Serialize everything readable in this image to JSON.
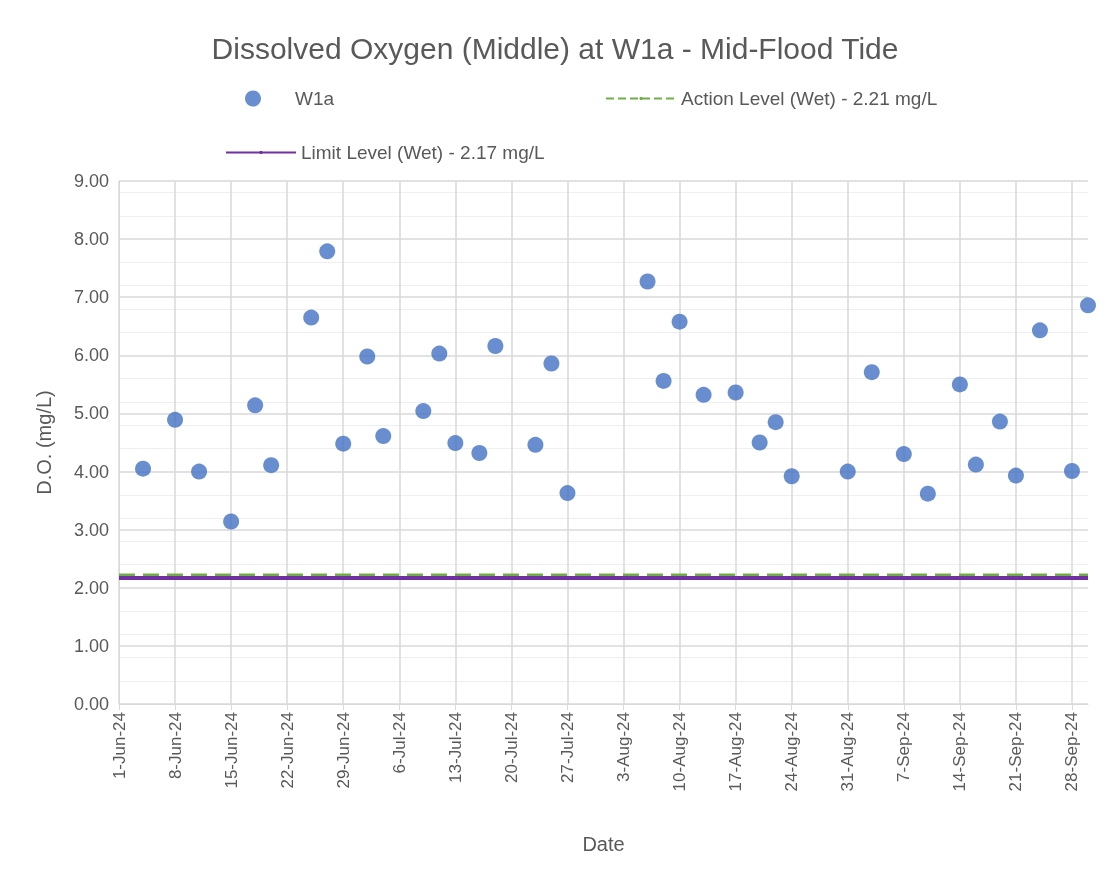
{
  "chart_data": {
    "type": "scatter",
    "title": "Dissolved Oxygen (Middle) at W1a - Mid-Flood Tide",
    "xlabel": "Date",
    "ylabel": "D.O. (mg/L)",
    "series": [
      {
        "name": "W1a",
        "color": "#4472c4",
        "x": [
          "--06-04",
          "--06-08",
          "--06-11",
          "--06-15",
          "--06-18",
          "--06-20",
          "--06-25",
          "--06-27",
          "--06-29",
          "--07-02",
          "--07-04",
          "--07-09",
          "--07-11",
          "--07-13",
          "--07-16",
          "--07-18",
          "--07-23",
          "--07-25",
          "--07-27",
          "--08-06",
          "--08-08",
          "--08-10",
          "--08-13",
          "--08-17",
          "--08-20",
          "--08-22",
          "--08-24",
          "--08-31",
          "--09-03",
          "--09-07",
          "--09-10",
          "--09-14",
          "--09-16",
          "--09-19",
          "--09-21",
          "--09-24",
          "--09-28",
          "--09-30"
        ],
        "values": [
          4.05,
          4.89,
          4.0,
          3.14,
          5.14,
          4.11,
          6.65,
          7.79,
          4.48,
          5.98,
          4.61,
          5.04,
          6.03,
          4.49,
          4.32,
          6.16,
          4.46,
          5.86,
          3.63,
          7.27,
          5.56,
          6.58,
          5.32,
          5.36,
          4.5,
          4.85,
          3.92,
          4.0,
          5.71,
          4.3,
          3.62,
          5.5,
          4.12,
          4.86,
          3.93,
          6.43,
          4.01,
          6.86
        ]
      }
    ],
    "ref_lines": [
      {
        "axis": "y",
        "value": 2.21,
        "label": "Action Level (Wet) - 2.21 mg/L",
        "color": "#70ad47",
        "line_style": "dashed"
      },
      {
        "axis": "y",
        "value": 2.17,
        "label": "Limit Level (Wet) - 2.17 mg/L",
        "color": "#7030a0",
        "line_style": "solid"
      }
    ],
    "xlim": [
      "--06-01",
      "--09-30"
    ],
    "xticks": [
      {
        "value": "--06-01",
        "label": "1-Jun-24"
      },
      {
        "value": "--06-08",
        "label": "8-Jun-24"
      },
      {
        "value": "--06-15",
        "label": "15-Jun-24"
      },
      {
        "value": "--06-22",
        "label": "22-Jun-24"
      },
      {
        "value": "--06-29",
        "label": "29-Jun-24"
      },
      {
        "value": "--07-06",
        "label": "6-Jul-24"
      },
      {
        "value": "--07-13",
        "label": "13-Jul-24"
      },
      {
        "value": "--07-20",
        "label": "20-Jul-24"
      },
      {
        "value": "--07-27",
        "label": "27-Jul-24"
      },
      {
        "value": "--08-03",
        "label": "3-Aug-24"
      },
      {
        "value": "--08-10",
        "label": "10-Aug-24"
      },
      {
        "value": "--08-17",
        "label": "17-Aug-24"
      },
      {
        "value": "--08-24",
        "label": "24-Aug-24"
      },
      {
        "value": "--08-31",
        "label": "31-Aug-24"
      },
      {
        "value": "--09-07",
        "label": "7-Sep-24"
      },
      {
        "value": "--09-14",
        "label": "14-Sep-24"
      },
      {
        "value": "--09-21",
        "label": "21-Sep-24"
      },
      {
        "value": "--09-28",
        "label": "28-Sep-24"
      }
    ],
    "ylim": [
      0,
      9
    ],
    "yticks": [
      {
        "value": 0,
        "label": "0.00"
      },
      {
        "value": 1,
        "label": "1.00"
      },
      {
        "value": 2,
        "label": "2.00"
      },
      {
        "value": 3,
        "label": "3.00"
      },
      {
        "value": 4,
        "label": "4.00"
      },
      {
        "value": 5,
        "label": "5.00"
      },
      {
        "value": 6,
        "label": "6.00"
      },
      {
        "value": 7,
        "label": "7.00"
      },
      {
        "value": 8,
        "label": "8.00"
      },
      {
        "value": 9,
        "label": "9.00"
      }
    ],
    "grid": true,
    "legend": "top",
    "marker": "circle"
  }
}
